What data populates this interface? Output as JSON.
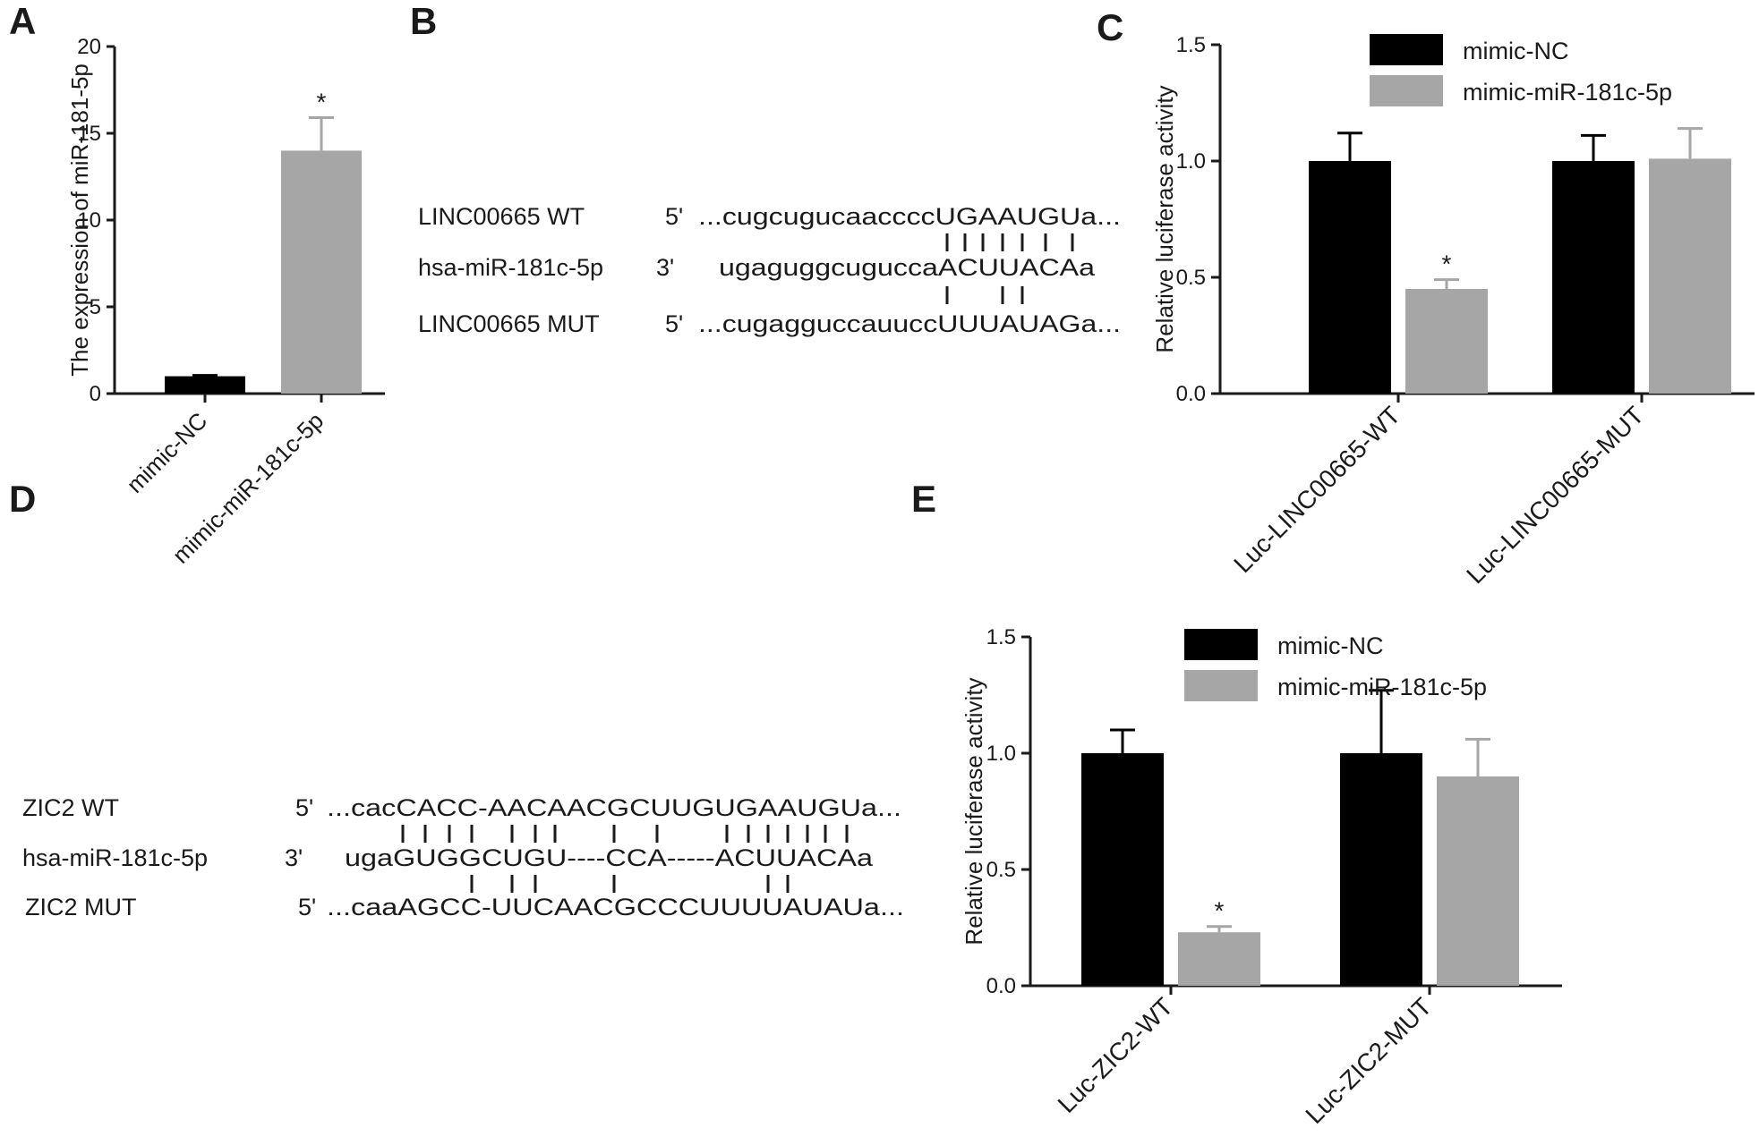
{
  "panels": {
    "A": "A",
    "B": "B",
    "C": "C",
    "D": "D",
    "E": "E"
  },
  "chart_data": [
    {
      "panel": "A",
      "type": "bar",
      "title": "",
      "xlabel": "",
      "ylabel": "The expression of miR-181-5p",
      "ylim": [
        0,
        20
      ],
      "yticks": [
        "0",
        "5",
        "10",
        "15",
        "20"
      ],
      "categories": [
        "mimic-NC",
        "mimic-miR-181c-5p"
      ],
      "series": [
        {
          "values": [
            1.0,
            14.0
          ],
          "errors": [
            0.05,
            1.9
          ],
          "colors": [
            "#000000",
            "#a6a6a6"
          ]
        }
      ],
      "significance": [
        {
          "category": "mimic-miR-181c-5p",
          "label": "*"
        }
      ]
    },
    {
      "panel": "C",
      "type": "bar",
      "title": "",
      "xlabel": "",
      "ylabel": "Relative luciferase activity",
      "ylim": [
        0,
        1.5
      ],
      "yticks": [
        "0.0",
        "0.5",
        "1.0",
        "1.5"
      ],
      "categories": [
        "Luc-LINC00665-WT",
        "Luc-LINC00665-MUT"
      ],
      "series": [
        {
          "name": "mimic-NC",
          "color": "#000000",
          "values": [
            1.0,
            1.0
          ],
          "errors": [
            0.12,
            0.11
          ]
        },
        {
          "name": "mimic-miR-181c-5p",
          "color": "#a6a6a6",
          "values": [
            0.45,
            1.01
          ],
          "errors": [
            0.04,
            0.13
          ]
        }
      ],
      "legend": "top-right",
      "significance": [
        {
          "category": "Luc-LINC00665-WT",
          "series": "mimic-miR-181c-5p",
          "label": "*"
        }
      ]
    },
    {
      "panel": "E",
      "type": "bar",
      "title": "",
      "xlabel": "",
      "ylabel": "Relative luciferase activity",
      "ylim": [
        0,
        1.5
      ],
      "yticks": [
        "0.0",
        "0.5",
        "1.0",
        "1.5"
      ],
      "categories": [
        "Luc-ZIC2-WT",
        "Luc-ZIC2-MUT"
      ],
      "series": [
        {
          "name": "mimic-NC",
          "color": "#000000",
          "values": [
            1.0,
            1.0
          ],
          "errors": [
            0.1,
            0.27
          ]
        },
        {
          "name": "mimic-miR-181c-5p",
          "color": "#a6a6a6",
          "values": [
            0.23,
            0.9
          ],
          "errors": [
            0.025,
            0.16
          ]
        }
      ],
      "legend": "top-right",
      "significance": [
        {
          "category": "Luc-ZIC2-WT",
          "series": "mimic-miR-181c-5p",
          "label": "*"
        }
      ]
    }
  ],
  "alignments": {
    "B": {
      "rows": [
        {
          "label": "LINC00665 WT",
          "end": "5'",
          "seq": "...cugcugucaaccccUGAAUGUa..."
        },
        {
          "label": "hsa-miR-181c-5p",
          "end": "3'",
          "seq": "ugaguggcuguccaACUUACAa"
        },
        {
          "label": "LINC00665 MUT",
          "end": "5'",
          "seq": "...cugagguccauuccUUUAUAGa..."
        }
      ]
    },
    "D": {
      "rows": [
        {
          "label": "ZIC2 WT",
          "end": "5'",
          "seq": "...cacCACC-AACAACGCUUGUGAAUGUa..."
        },
        {
          "label": "hsa-miR-181c-5p",
          "end": "3'",
          "seq": "ugaGUGGCUGU----CCA-----ACUUACAa"
        },
        {
          "label": "ZIC2 MUT",
          "end": "5'",
          "seq": "...caaAGCC-UUCAACGCCCUUUUAUAUa..."
        }
      ]
    }
  }
}
